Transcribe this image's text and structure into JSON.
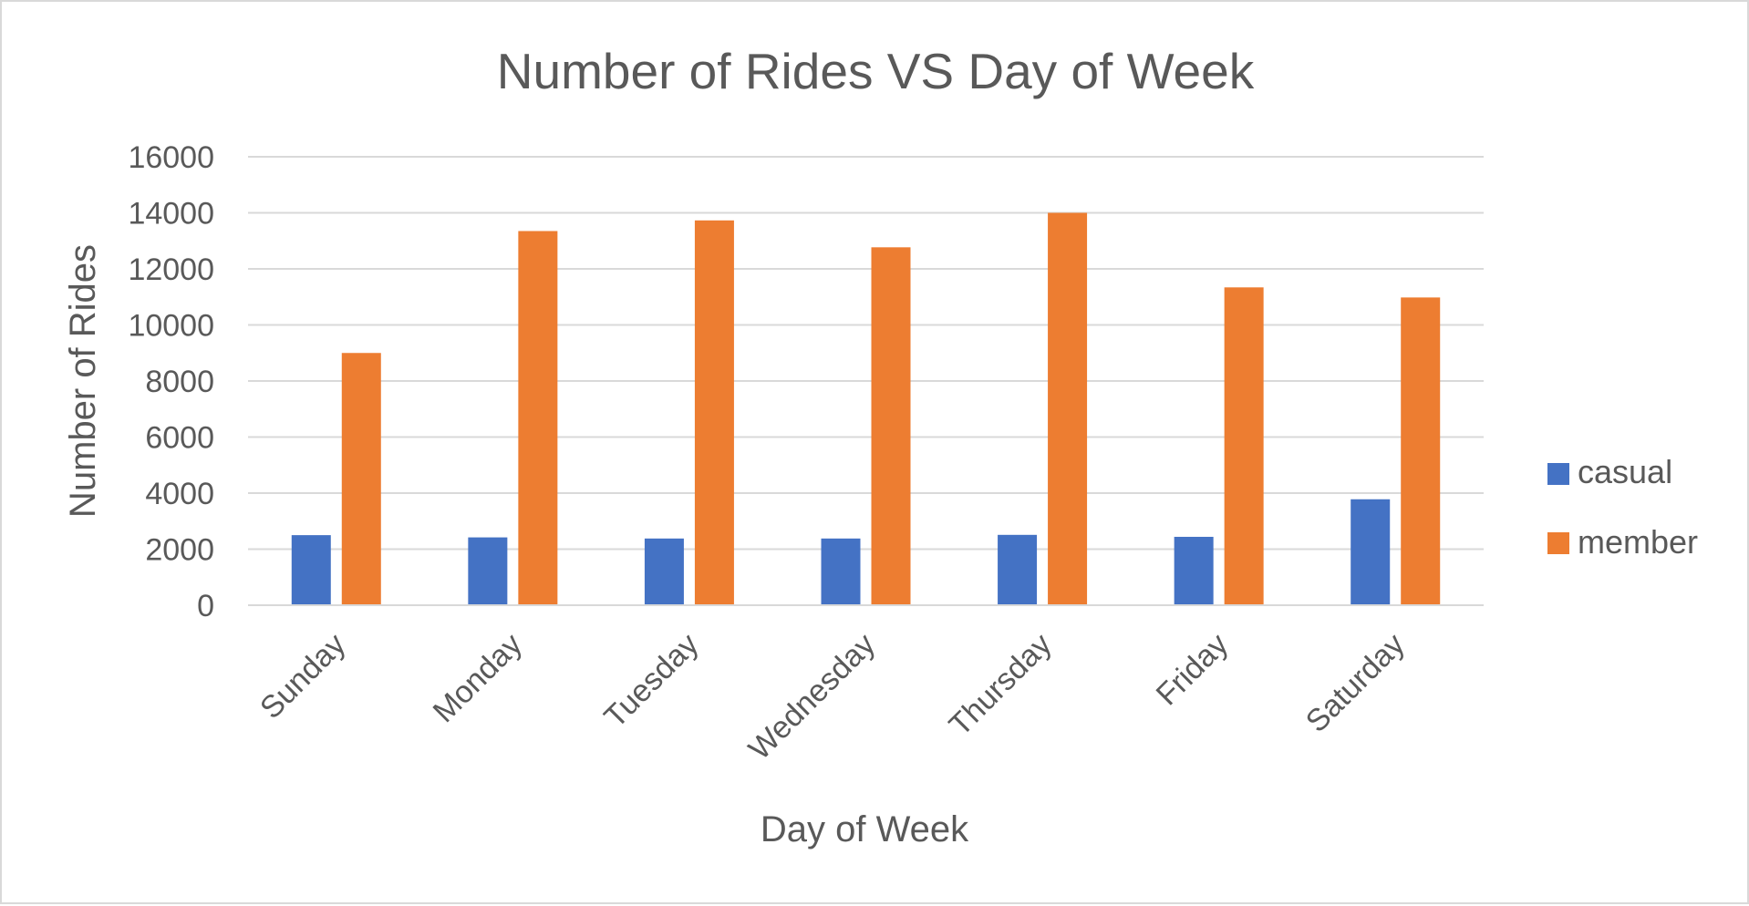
{
  "chart_data": {
    "type": "bar",
    "title": "Number of Rides VS Day of Week",
    "xlabel": "Day of Week",
    "ylabel": "Number of Rides",
    "categories": [
      "Sunday",
      "Monday",
      "Tuesday",
      "Wednesday",
      "Thursday",
      "Friday",
      "Saturday"
    ],
    "series": [
      {
        "name": "casual",
        "color": "#4472C4",
        "values": [
          2500,
          2420,
          2380,
          2380,
          2510,
          2440,
          3780
        ]
      },
      {
        "name": "member",
        "color": "#ED7D31",
        "values": [
          9000,
          13350,
          13730,
          12770,
          14000,
          11340,
          10980
        ]
      }
    ],
    "ylim": [
      0,
      16000
    ],
    "yticks": [
      "0",
      "2000",
      "4000",
      "6000",
      "8000",
      "10000",
      "12000",
      "14000",
      "16000"
    ],
    "grid": true,
    "legend_position": "right"
  }
}
